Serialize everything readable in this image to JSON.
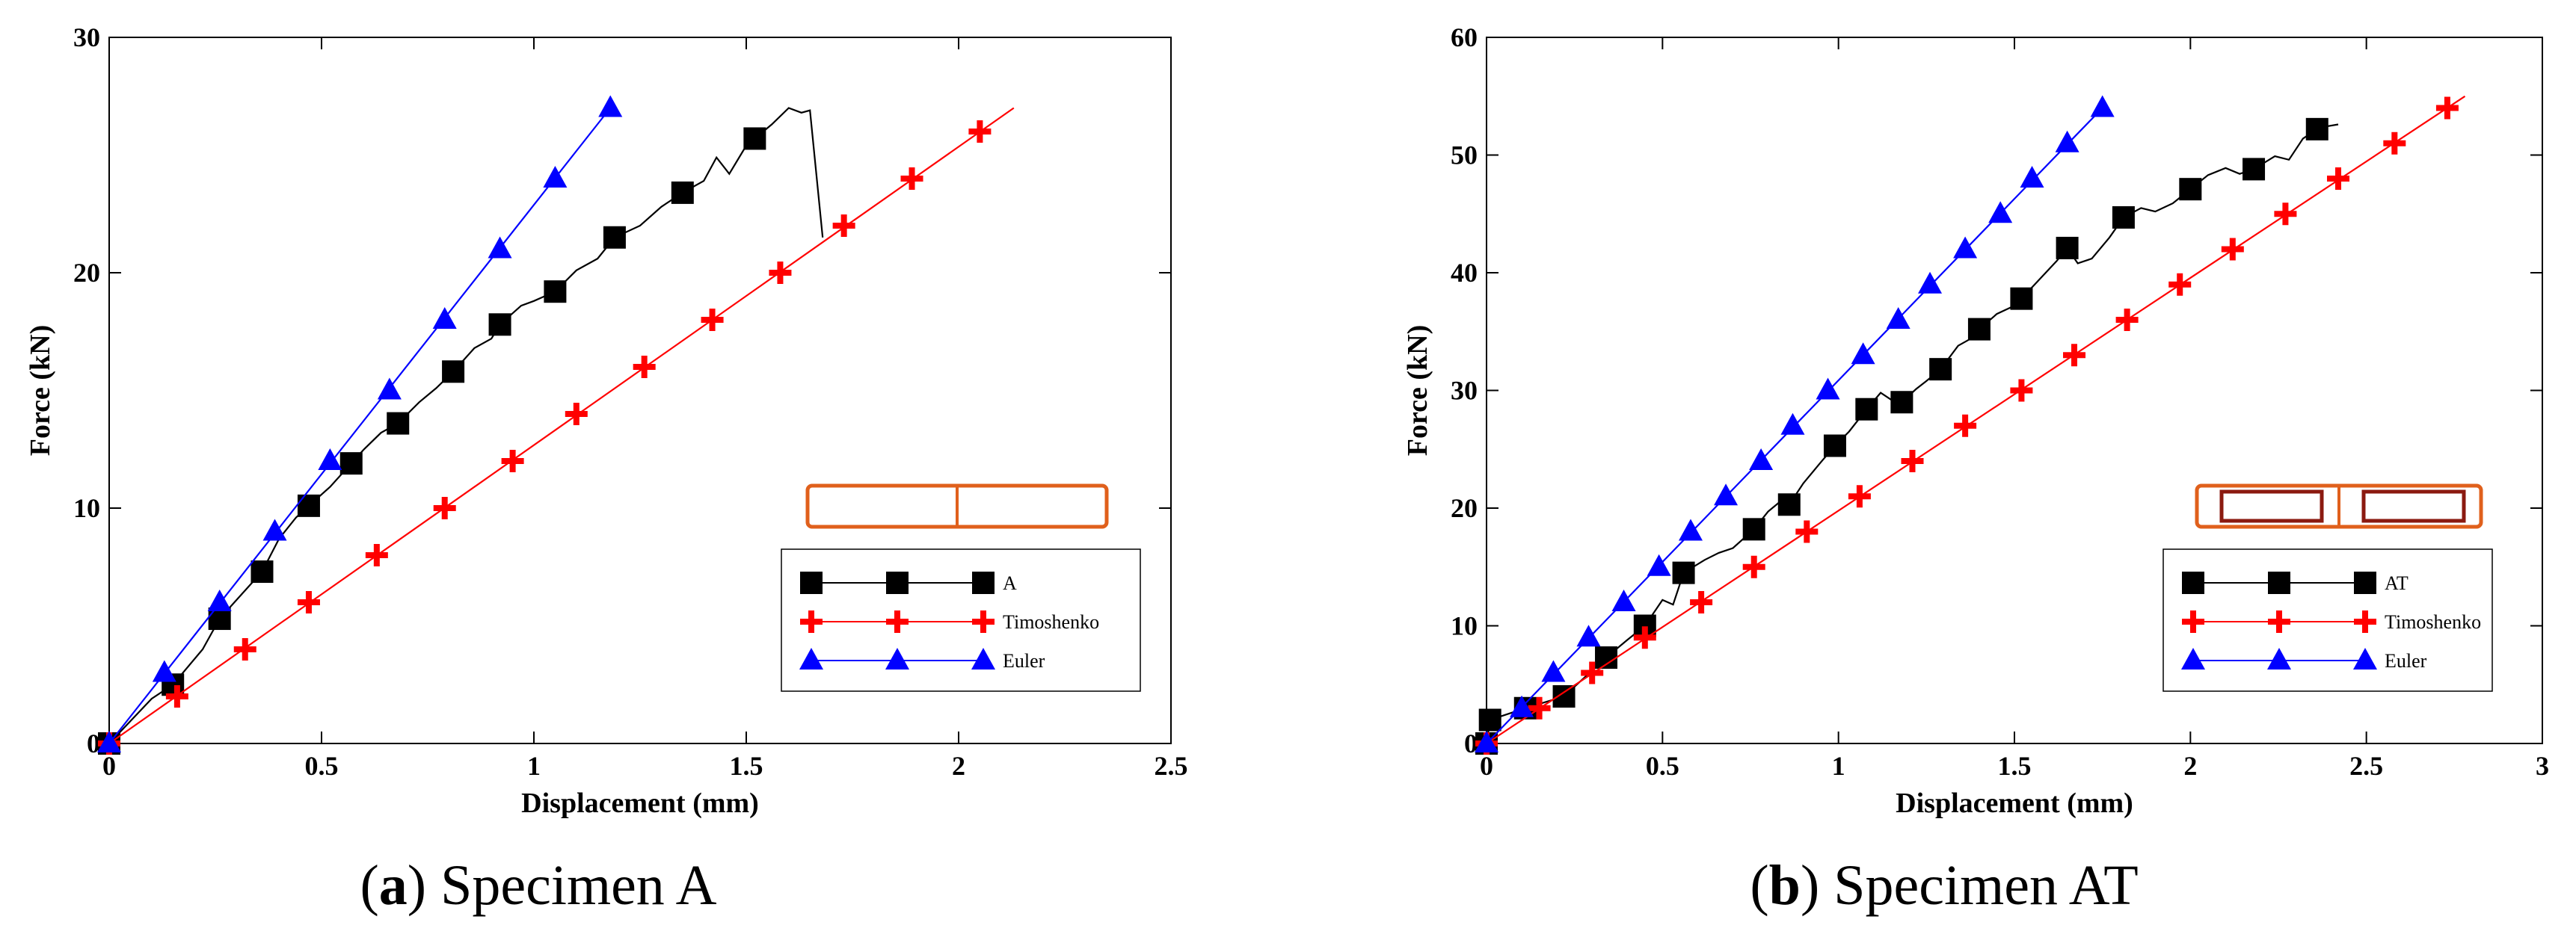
{
  "chart_data": [
    {
      "type": "line",
      "caption": {
        "prefix": "(",
        "letter": "a",
        "suffix": ") Specimen A"
      },
      "xlabel": "Displacement (mm)",
      "ylabel": "Force (kN)",
      "xlim": [
        0,
        2.5
      ],
      "ylim": [
        0,
        30
      ],
      "xticks": [
        0,
        0.5,
        1,
        1.5,
        2,
        2.5
      ],
      "xtick_labels": [
        "0",
        "0.5",
        "1",
        "1.5",
        "2",
        "2.5"
      ],
      "yticks": [
        0,
        10,
        20,
        30
      ],
      "ytick_labels": [
        "0",
        "10",
        "20",
        "30"
      ],
      "grid": false,
      "legend_position": "lower-right",
      "inset": {
        "shape": "two-cell rectangular section",
        "color": "#e0601c"
      },
      "series": [
        {
          "name": "A",
          "color": "#000000",
          "marker": "square",
          "markers": [
            [
              0,
              0
            ],
            [
              0.15,
              2.5
            ],
            [
              0.26,
              5.3
            ],
            [
              0.36,
              7.3
            ],
            [
              0.47,
              10.1
            ],
            [
              0.57,
              11.9
            ],
            [
              0.68,
              13.6
            ],
            [
              0.81,
              15.8
            ],
            [
              0.92,
              17.8
            ],
            [
              1.05,
              19.2
            ],
            [
              1.19,
              21.5
            ],
            [
              1.35,
              23.4
            ],
            [
              1.52,
              25.7
            ]
          ],
          "curve": [
            [
              0,
              0
            ],
            [
              0.1,
              1.9
            ],
            [
              0.15,
              2.5
            ],
            [
              0.22,
              4.0
            ],
            [
              0.26,
              5.3
            ],
            [
              0.31,
              6.3
            ],
            [
              0.36,
              7.3
            ],
            [
              0.4,
              8.7
            ],
            [
              0.44,
              9.6
            ],
            [
              0.47,
              10.1
            ],
            [
              0.52,
              10.9
            ],
            [
              0.57,
              11.9
            ],
            [
              0.6,
              12.5
            ],
            [
              0.64,
              13.2
            ],
            [
              0.68,
              13.6
            ],
            [
              0.73,
              14.5
            ],
            [
              0.77,
              15.1
            ],
            [
              0.81,
              15.8
            ],
            [
              0.86,
              16.8
            ],
            [
              0.9,
              17.2
            ],
            [
              0.92,
              17.8
            ],
            [
              0.97,
              18.6
            ],
            [
              1.0,
              18.8
            ],
            [
              1.05,
              19.2
            ],
            [
              1.1,
              20.1
            ],
            [
              1.15,
              20.6
            ],
            [
              1.19,
              21.5
            ],
            [
              1.25,
              22.0
            ],
            [
              1.3,
              22.8
            ],
            [
              1.35,
              23.4
            ],
            [
              1.4,
              23.9
            ],
            [
              1.43,
              24.9
            ],
            [
              1.46,
              24.2
            ],
            [
              1.5,
              25.4
            ],
            [
              1.52,
              25.7
            ],
            [
              1.56,
              26.3
            ],
            [
              1.6,
              27.0
            ],
            [
              1.63,
              26.8
            ],
            [
              1.65,
              26.9
            ],
            [
              1.68,
              21.5
            ]
          ]
        },
        {
          "name": "Timoshenko",
          "color": "#ff0000",
          "marker": "cross",
          "markers": [
            [
              0,
              0
            ],
            [
              0.16,
              2
            ],
            [
              0.32,
              4
            ],
            [
              0.47,
              6
            ],
            [
              0.63,
              8
            ],
            [
              0.79,
              10
            ],
            [
              0.95,
              12
            ],
            [
              1.1,
              14
            ],
            [
              1.26,
              16
            ],
            [
              1.42,
              18
            ],
            [
              1.58,
              20
            ],
            [
              1.73,
              22
            ],
            [
              1.89,
              24
            ],
            [
              2.05,
              26
            ]
          ],
          "curve": [
            [
              0,
              0
            ],
            [
              2.13,
              27
            ]
          ]
        },
        {
          "name": "Euler",
          "color": "#0000ff",
          "marker": "triangle",
          "markers": [
            [
              0,
              0
            ],
            [
              0.13,
              3
            ],
            [
              0.26,
              6
            ],
            [
              0.39,
              9
            ],
            [
              0.52,
              12
            ],
            [
              0.66,
              15
            ],
            [
              0.79,
              18
            ],
            [
              0.92,
              21
            ],
            [
              1.05,
              24
            ],
            [
              1.18,
              27
            ]
          ],
          "curve": [
            [
              0,
              0
            ],
            [
              1.18,
              27
            ]
          ]
        }
      ]
    },
    {
      "type": "line",
      "caption": {
        "prefix": "(",
        "letter": "b",
        "suffix": ") Specimen AT"
      },
      "xlabel": "Displacement (mm)",
      "ylabel": "Force (kN)",
      "xlim": [
        0,
        3
      ],
      "ylim": [
        0,
        60
      ],
      "xticks": [
        0,
        0.5,
        1,
        1.5,
        2,
        2.5,
        3
      ],
      "xtick_labels": [
        "0",
        "0.5",
        "1",
        "1.5",
        "2",
        "2.5",
        "3"
      ],
      "yticks": [
        0,
        10,
        20,
        30,
        40,
        50,
        60
      ],
      "ytick_labels": [
        "0",
        "10",
        "20",
        "30",
        "40",
        "50",
        "60"
      ],
      "grid": false,
      "legend_position": "lower-right",
      "inset": {
        "shape": "two-cell rectangular section with inner tubes",
        "color": "#e0601c",
        "inner_color": "#8b1a10"
      },
      "series": [
        {
          "name": "AT",
          "color": "#000000",
          "marker": "square",
          "markers": [
            [
              0,
              0
            ],
            [
              0.01,
              2
            ],
            [
              0.11,
              3
            ],
            [
              0.22,
              4
            ],
            [
              0.34,
              7.3
            ],
            [
              0.45,
              10
            ],
            [
              0.56,
              14.5
            ],
            [
              0.76,
              18.2
            ],
            [
              0.86,
              20.3
            ],
            [
              0.99,
              25.3
            ],
            [
              1.08,
              28.4
            ],
            [
              1.18,
              29
            ],
            [
              1.29,
              31.8
            ],
            [
              1.4,
              35.2
            ],
            [
              1.52,
              37.8
            ],
            [
              1.65,
              42.1
            ],
            [
              1.81,
              44.7
            ],
            [
              2.0,
              47.1
            ],
            [
              2.18,
              48.8
            ],
            [
              2.36,
              52.2
            ]
          ],
          "curve": [
            [
              0,
              0
            ],
            [
              0.01,
              2
            ],
            [
              0.11,
              3
            ],
            [
              0.22,
              4
            ],
            [
              0.34,
              7.3
            ],
            [
              0.4,
              8.8
            ],
            [
              0.45,
              10
            ],
            [
              0.5,
              12.2
            ],
            [
              0.53,
              11.8
            ],
            [
              0.56,
              14.5
            ],
            [
              0.62,
              15.6
            ],
            [
              0.66,
              16.2
            ],
            [
              0.7,
              16.6
            ],
            [
              0.76,
              18.2
            ],
            [
              0.8,
              19.7
            ],
            [
              0.84,
              20.7
            ],
            [
              0.86,
              20.3
            ],
            [
              0.9,
              22.1
            ],
            [
              0.95,
              23.9
            ],
            [
              0.99,
              25.3
            ],
            [
              1.03,
              26.5
            ],
            [
              1.08,
              28.4
            ],
            [
              1.12,
              29.8
            ],
            [
              1.15,
              29.2
            ],
            [
              1.18,
              29
            ],
            [
              1.22,
              30.1
            ],
            [
              1.25,
              30.8
            ],
            [
              1.29,
              31.8
            ],
            [
              1.34,
              33.8
            ],
            [
              1.37,
              34.3
            ],
            [
              1.4,
              35.2
            ],
            [
              1.45,
              36.5
            ],
            [
              1.5,
              37.2
            ],
            [
              1.52,
              37.8
            ],
            [
              1.57,
              39.4
            ],
            [
              1.62,
              41.0
            ],
            [
              1.65,
              42.1
            ],
            [
              1.68,
              40.8
            ],
            [
              1.72,
              41.2
            ],
            [
              1.77,
              43.0
            ],
            [
              1.81,
              44.7
            ],
            [
              1.86,
              45.5
            ],
            [
              1.9,
              45.2
            ],
            [
              1.95,
              45.9
            ],
            [
              2.0,
              47.1
            ],
            [
              2.05,
              48.3
            ],
            [
              2.1,
              48.9
            ],
            [
              2.14,
              48.4
            ],
            [
              2.18,
              48.8
            ],
            [
              2.24,
              49.9
            ],
            [
              2.28,
              49.6
            ],
            [
              2.32,
              51.4
            ],
            [
              2.36,
              52.2
            ],
            [
              2.38,
              52.4
            ],
            [
              2.42,
              52.6
            ]
          ]
        },
        {
          "name": "Timoshenko",
          "color": "#ff0000",
          "marker": "cross",
          "markers": [
            [
              0,
              0
            ],
            [
              0.15,
              3
            ],
            [
              0.3,
              6
            ],
            [
              0.45,
              9
            ],
            [
              0.61,
              12
            ],
            [
              0.76,
              15
            ],
            [
              0.91,
              18
            ],
            [
              1.06,
              21
            ],
            [
              1.21,
              24
            ],
            [
              1.36,
              27
            ],
            [
              1.52,
              30
            ],
            [
              1.67,
              33
            ],
            [
              1.82,
              36
            ],
            [
              1.97,
              39
            ],
            [
              2.12,
              42
            ],
            [
              2.27,
              45
            ],
            [
              2.42,
              48
            ],
            [
              2.58,
              51
            ],
            [
              2.73,
              54
            ]
          ],
          "curve": [
            [
              0,
              0
            ],
            [
              2.78,
              55
            ]
          ]
        },
        {
          "name": "Euler",
          "color": "#0000ff",
          "marker": "triangle",
          "markers": [
            [
              0,
              0
            ],
            [
              0.1,
              3
            ],
            [
              0.19,
              6
            ],
            [
              0.29,
              9
            ],
            [
              0.39,
              12
            ],
            [
              0.49,
              15
            ],
            [
              0.58,
              18
            ],
            [
              0.68,
              21
            ],
            [
              0.78,
              24
            ],
            [
              0.87,
              27
            ],
            [
              0.97,
              30
            ],
            [
              1.07,
              33
            ],
            [
              1.17,
              36
            ],
            [
              1.26,
              39
            ],
            [
              1.36,
              42
            ],
            [
              1.46,
              45
            ],
            [
              1.55,
              48
            ],
            [
              1.65,
              51
            ],
            [
              1.75,
              54
            ]
          ],
          "curve": [
            [
              0,
              0
            ],
            [
              1.75,
              54
            ]
          ]
        }
      ]
    }
  ]
}
